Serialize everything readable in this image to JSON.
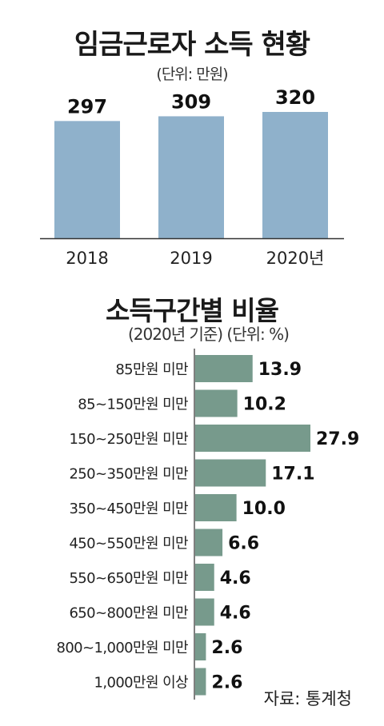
{
  "chart_data": [
    {
      "type": "bar",
      "title": "임금근로자 소득 현황",
      "unit": "(단위: 만원)",
      "categories": [
        "2018",
        "2019",
        "2020년"
      ],
      "values": [
        297,
        309,
        320
      ],
      "value_labels": [
        "297",
        "309",
        "320"
      ],
      "bar_color": "#8fb1cb"
    },
    {
      "type": "bar",
      "orientation": "horizontal",
      "title": "소득구간별 비율",
      "unit": "(2020년 기준) (단위: %)",
      "categories": [
        "85만원 미만",
        "85~150만원 미만",
        "150~250만원 미만",
        "250~350만원 미만",
        "350~450만원 미만",
        "450~550만원 미만",
        "550~650만원 미만",
        "650~800만원 미만",
        "800~1,000만원 미만",
        "1,000만원 이상"
      ],
      "values": [
        13.9,
        10.2,
        27.9,
        17.1,
        10.0,
        6.6,
        4.6,
        4.6,
        2.6,
        2.6
      ],
      "value_labels": [
        "13.9",
        "10.2",
        "27.9",
        "17.1",
        "10.0",
        "6.6",
        "4.6",
        "4.6",
        "2.6",
        "2.6"
      ],
      "bar_color": "#779a8c"
    }
  ],
  "source": "자료: 통계청"
}
